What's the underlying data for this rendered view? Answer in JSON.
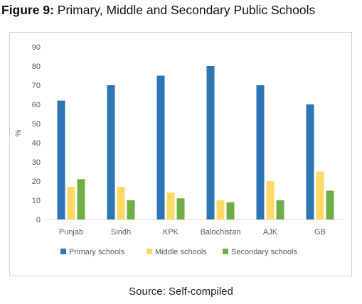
{
  "figure": {
    "label": "Figure 9:",
    "title": "Primary, Middle and Secondary Public Schools",
    "source": "Source: Self-compiled"
  },
  "chart_data": {
    "type": "bar",
    "categories": [
      "Punjab",
      "Sindh",
      "KPK",
      "Balochistan",
      "AJK",
      "GB"
    ],
    "series": [
      {
        "name": "Primary schools",
        "values": [
          62,
          70,
          75,
          80,
          70,
          60
        ],
        "color": "#2e75b6"
      },
      {
        "name": "Middle schools",
        "values": [
          17,
          17,
          14,
          10,
          20,
          25
        ],
        "color": "#ffd966"
      },
      {
        "name": "Secondary schools",
        "values": [
          21,
          10,
          11,
          9,
          10,
          15
        ],
        "color": "#70ad47"
      }
    ],
    "xlabel": "",
    "ylabel": "%",
    "ylim": [
      0,
      90
    ],
    "yticks": [
      0,
      10,
      20,
      30,
      40,
      50,
      60,
      70,
      80,
      90
    ],
    "grid": false,
    "legend_position": "bottom"
  }
}
